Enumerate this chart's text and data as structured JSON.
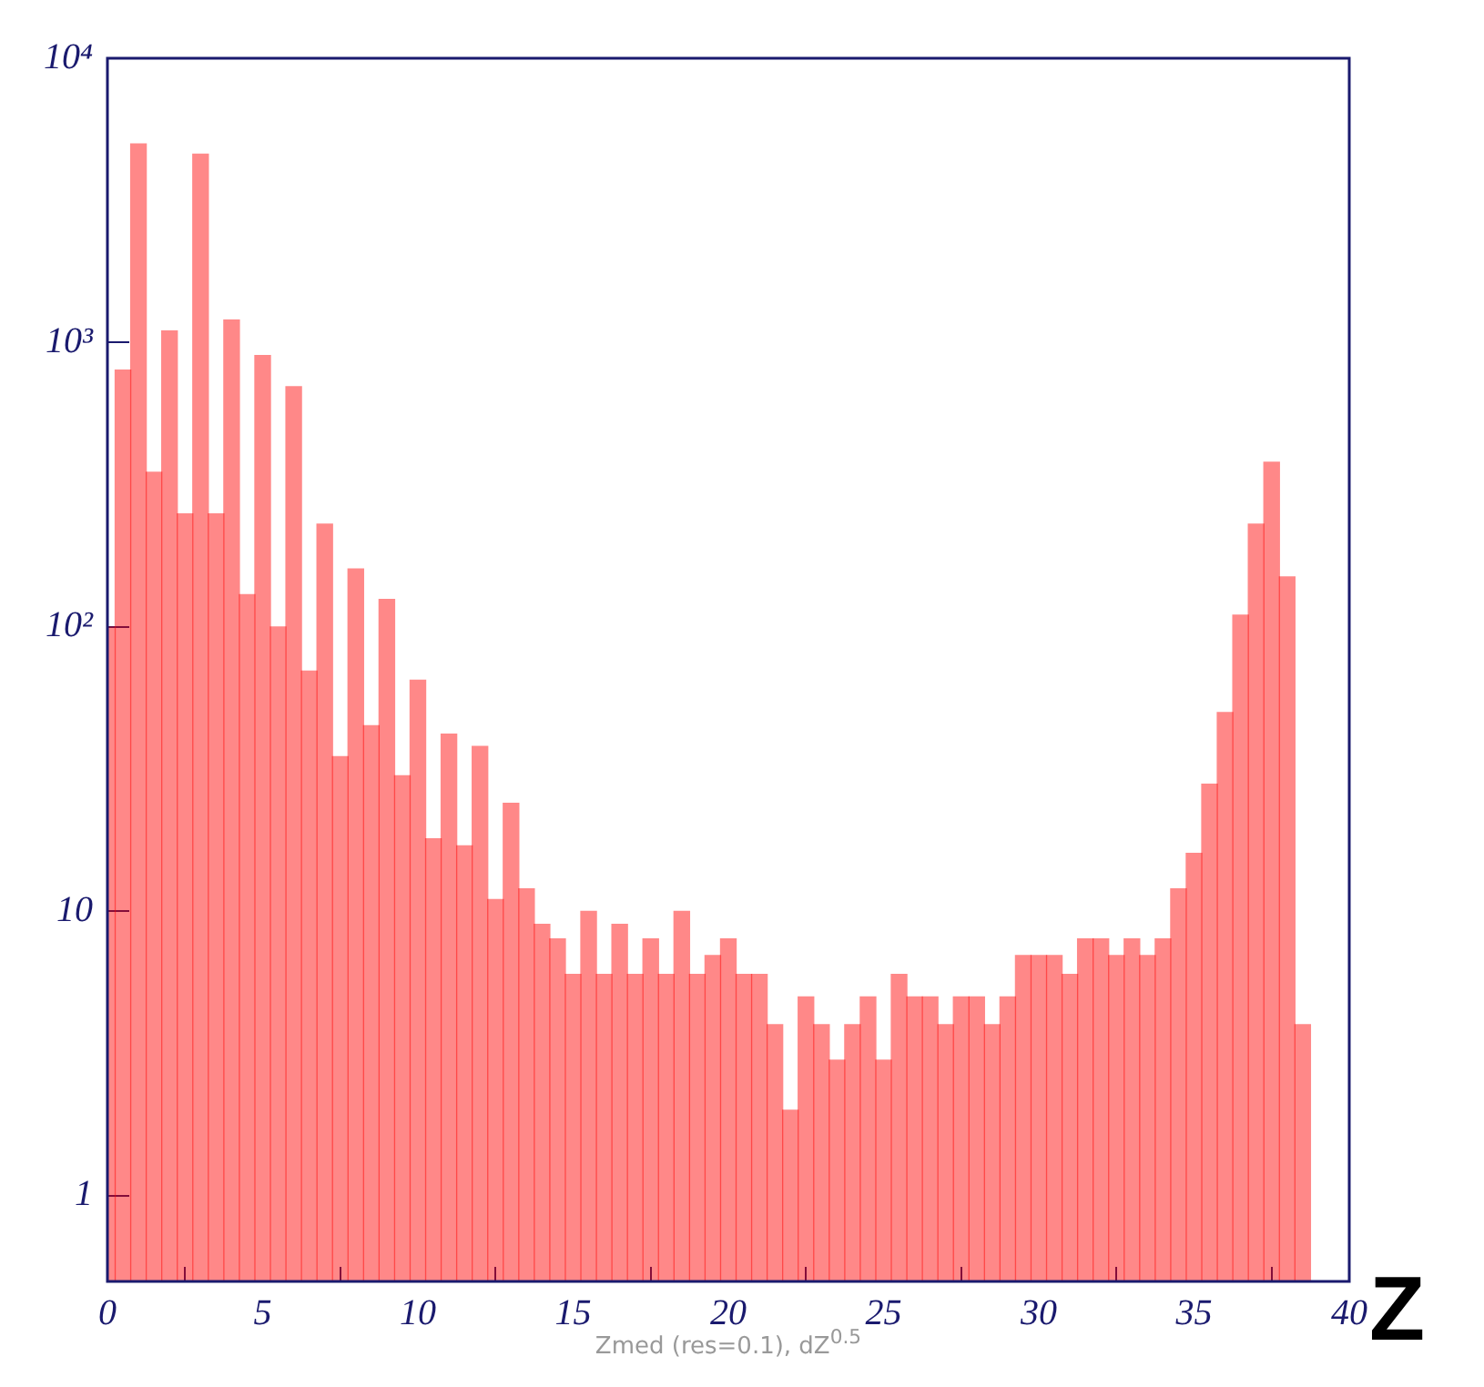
{
  "chart_data": {
    "type": "histogram",
    "xlabel": "Zmed (res=0.1), dZ$^{0.5}$",
    "annotations": [
      "Z"
    ],
    "log": "y",
    "grid": false,
    "color": "#ff0000",
    "bins": [
      0,
      0.25,
      0.75,
      1.25,
      1.75,
      2.25,
      2.75,
      3.25,
      3.75,
      4.25,
      4.75,
      5.25,
      5.75,
      6.25,
      6.75,
      7.25,
      7.75,
      8.25,
      8.75,
      9.25,
      9.75,
      10.25,
      10.75,
      11.25,
      11.75,
      12.25,
      12.75,
      13.25,
      13.75,
      14.25,
      14.75,
      15.25,
      15.75,
      16.25,
      16.75,
      17.25,
      17.75,
      18.25,
      18.75,
      19.25,
      19.75,
      20.25,
      20.75,
      21.25,
      21.75,
      22.25,
      22.75,
      23.25,
      23.75,
      24.25,
      24.75,
      25.25,
      25.75,
      26.25,
      26.75,
      27.25,
      27.75,
      28.25,
      28.75,
      29.25,
      29.75,
      30.25,
      30.75,
      31.25,
      31.75,
      32.25,
      32.75,
      33.25,
      33.75,
      34.25,
      34.75,
      35.25,
      35.75,
      36.25,
      36.75,
      37.25,
      37.75,
      38.25,
      38.75
    ],
    "values": [
      100,
      800,
      5000,
      350,
      1100,
      250,
      4600,
      250,
      1200,
      130,
      900,
      100,
      700,
      70,
      230,
      35,
      160,
      45,
      125,
      30,
      65,
      18,
      42,
      17,
      38,
      11,
      24,
      12,
      9,
      8,
      6,
      10,
      6,
      9,
      6,
      8,
      6,
      10,
      6,
      7,
      8,
      6,
      6,
      4,
      2,
      5,
      4,
      3,
      4,
      5,
      3,
      6,
      5,
      5,
      4,
      5,
      5,
      4,
      5,
      7,
      7,
      7,
      6,
      8,
      8,
      7,
      8,
      7,
      8,
      12,
      16,
      28,
      50,
      110,
      230,
      380,
      150,
      4
    ],
    "xlim": [
      0,
      40
    ],
    "xticks": [
      0,
      5,
      10,
      15,
      20,
      25,
      30,
      35,
      40
    ],
    "ylim": [
      0.5,
      10000
    ],
    "yticks": [
      1,
      10,
      {
        "value": 100,
        "label": "10²"
      },
      {
        "value": 1000,
        "label": "10³"
      },
      {
        "value": 10000,
        "label": "10⁴"
      }
    ]
  }
}
